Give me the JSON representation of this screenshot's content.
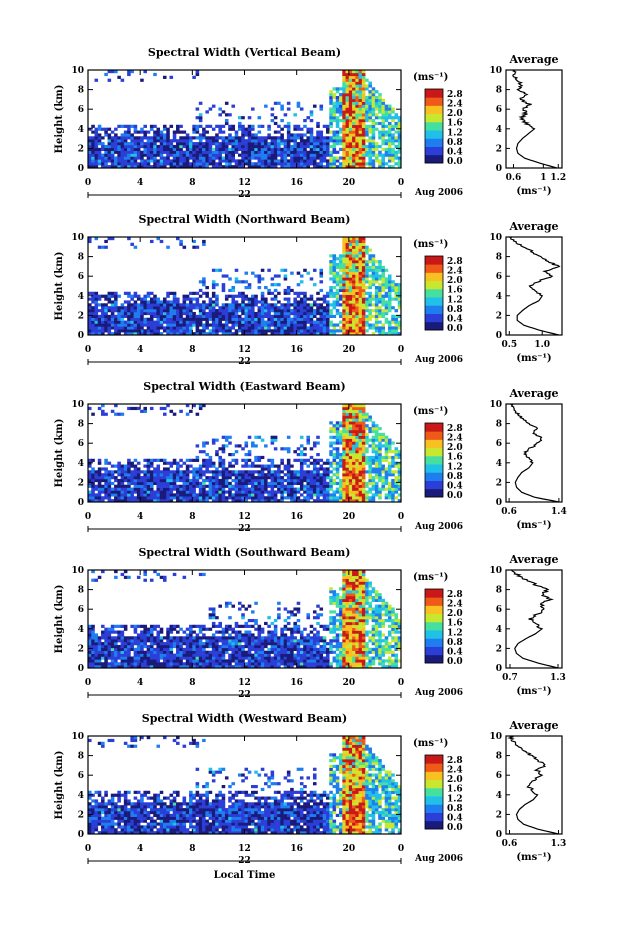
{
  "figure": {
    "xlabel": "Local Time",
    "date_label": "Aug 2006",
    "day_label": "22",
    "unit_label": "(ms⁻¹)",
    "height_label": "Height (km)",
    "avg_title": "Average",
    "avg_xlabel": "(ms⁻¹)"
  },
  "colorbar": {
    "ticks": [
      "2.8",
      "2.4",
      "2.0",
      "1.6",
      "1.2",
      "0.8",
      "0.4",
      "0.0"
    ],
    "range": [
      0.0,
      3.0
    ],
    "colors": [
      "#1a1a7a",
      "#2b3fd8",
      "#1e7ef0",
      "#20c0e8",
      "#45e0a0",
      "#c8e830",
      "#f8c020",
      "#f05a18",
      "#c81818"
    ]
  },
  "chart_data": [
    {
      "type": "heatmap",
      "title": "Spectral Width (Vertical Beam)",
      "x_ticks": [
        "0",
        "4",
        "8",
        "12",
        "16",
        "20",
        "0"
      ],
      "y_ticks": [
        "0",
        "2",
        "4",
        "6",
        "8",
        "10"
      ],
      "xlim": [
        0,
        24
      ],
      "ylim": [
        0,
        10
      ],
      "avg": {
        "type": "line",
        "x_ticks": [
          "0.6",
          "1",
          "1.2"
        ],
        "x_tick_vals": [
          0.6,
          1.0,
          1.2
        ],
        "xlim": [
          0.5,
          1.25
        ],
        "height": [
          0,
          0.5,
          1,
          1.5,
          2,
          2.5,
          3,
          3.5,
          4,
          4.5,
          5,
          5.5,
          6,
          6.5,
          7,
          7.5,
          8,
          8.5,
          9,
          9.5,
          10
        ],
        "value": [
          1.18,
          0.95,
          0.75,
          0.66,
          0.64,
          0.66,
          0.72,
          0.8,
          0.88,
          0.78,
          0.7,
          0.76,
          0.74,
          0.82,
          0.7,
          0.78,
          0.68,
          0.7,
          0.64,
          0.6,
          0.62
        ]
      }
    },
    {
      "type": "heatmap",
      "title": "Spectral Width (Northward Beam)",
      "x_ticks": [
        "0",
        "4",
        "8",
        "12",
        "16",
        "20",
        "0"
      ],
      "y_ticks": [
        "0",
        "2",
        "4",
        "6",
        "8",
        "10"
      ],
      "xlim": [
        0,
        24
      ],
      "ylim": [
        0,
        10
      ],
      "avg": {
        "type": "line",
        "x_ticks": [
          "0.5",
          "1.0"
        ],
        "x_tick_vals": [
          0.5,
          1.0
        ],
        "xlim": [
          0.45,
          1.3
        ],
        "height": [
          0,
          0.5,
          1,
          1.5,
          2,
          2.5,
          3,
          3.5,
          4,
          4.5,
          5,
          5.5,
          6,
          6.5,
          7,
          7.5,
          8,
          8.5,
          9,
          9.5,
          10
        ],
        "value": [
          1.25,
          0.95,
          0.72,
          0.62,
          0.62,
          0.7,
          0.8,
          0.95,
          1.0,
          0.9,
          0.82,
          0.95,
          1.15,
          1.05,
          1.25,
          1.1,
          0.95,
          0.85,
          0.72,
          0.6,
          0.5
        ]
      }
    },
    {
      "type": "heatmap",
      "title": "Spectral Width (Eastward Beam)",
      "x_ticks": [
        "0",
        "4",
        "8",
        "12",
        "16",
        "20",
        "0"
      ],
      "y_ticks": [
        "0",
        "2",
        "4",
        "6",
        "8",
        "10"
      ],
      "xlim": [
        0,
        24
      ],
      "ylim": [
        0,
        10
      ],
      "avg": {
        "type": "line",
        "x_ticks": [
          "0.6",
          "1.4"
        ],
        "x_tick_vals": [
          0.6,
          1.4
        ],
        "xlim": [
          0.55,
          1.45
        ],
        "height": [
          0,
          0.5,
          1,
          1.5,
          2,
          2.5,
          3,
          3.5,
          4,
          4.5,
          5,
          5.5,
          6,
          6.5,
          7,
          7.5,
          8,
          8.5,
          9,
          9.5,
          10
        ],
        "value": [
          1.4,
          1.0,
          0.8,
          0.72,
          0.7,
          0.74,
          0.8,
          0.92,
          0.98,
          0.9,
          0.85,
          0.95,
          1.05,
          1.12,
          0.98,
          1.06,
          0.9,
          0.82,
          0.74,
          0.68,
          0.62
        ]
      }
    },
    {
      "type": "heatmap",
      "title": "Spectral Width (Southward Beam)",
      "x_ticks": [
        "0",
        "4",
        "8",
        "12",
        "16",
        "20",
        "0"
      ],
      "y_ticks": [
        "0",
        "2",
        "4",
        "6",
        "8",
        "10"
      ],
      "xlim": [
        0,
        24
      ],
      "ylim": [
        0,
        10
      ],
      "avg": {
        "type": "line",
        "x_ticks": [
          "0.7",
          "1.3"
        ],
        "x_tick_vals": [
          0.7,
          1.3
        ],
        "xlim": [
          0.65,
          1.35
        ],
        "height": [
          0,
          0.5,
          1,
          1.5,
          2,
          2.5,
          3,
          3.5,
          4,
          4.5,
          5,
          5.5,
          6,
          6.5,
          7,
          7.5,
          8,
          8.5,
          9,
          9.5,
          10
        ],
        "value": [
          1.3,
          1.05,
          0.86,
          0.78,
          0.76,
          0.8,
          0.9,
          1.02,
          1.1,
          1.02,
          0.96,
          1.04,
          1.14,
          1.08,
          1.2,
          1.1,
          1.16,
          1.02,
          0.9,
          0.8,
          0.72
        ]
      }
    },
    {
      "type": "heatmap",
      "title": "Spectral Width (Westward Beam)",
      "x_ticks": [
        "0",
        "4",
        "8",
        "12",
        "16",
        "20",
        "0"
      ],
      "y_ticks": [
        "0",
        "2",
        "4",
        "6",
        "8",
        "10"
      ],
      "xlim": [
        0,
        24
      ],
      "ylim": [
        0,
        10
      ],
      "avg": {
        "type": "line",
        "x_ticks": [
          "0.6",
          "1.3"
        ],
        "x_tick_vals": [
          0.6,
          1.3
        ],
        "xlim": [
          0.55,
          1.35
        ],
        "height": [
          0,
          0.5,
          1,
          1.5,
          2,
          2.5,
          3,
          3.5,
          4,
          4.5,
          5,
          5.5,
          6,
          6.5,
          7,
          7.5,
          8,
          8.5,
          9,
          9.5,
          10
        ],
        "value": [
          1.3,
          1.0,
          0.8,
          0.72,
          0.7,
          0.74,
          0.82,
          0.94,
          1.0,
          0.92,
          0.86,
          0.96,
          1.06,
          1.0,
          1.1,
          1.02,
          0.92,
          0.82,
          0.72,
          0.66,
          0.6
        ]
      }
    }
  ]
}
